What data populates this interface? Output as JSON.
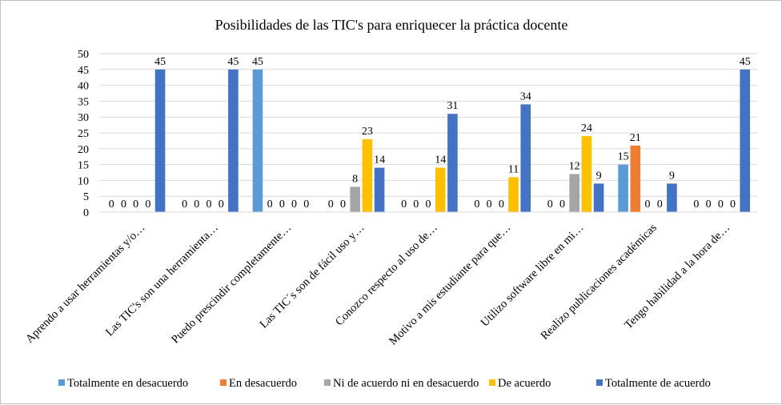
{
  "chart_data": {
    "type": "bar",
    "title": "Posibilidades de las TIC's para enriquecer la práctica docente",
    "categories": [
      "Aprendo a usar herramientas y/o…",
      "Las TIC's son una herramienta…",
      "Puedo prescindir completamente…",
      "Las TIC´s son de fácil uso y…",
      "Conozco respecto al uso de…",
      "Motivo a mis estudiante para que…",
      "Utilizo software libre en mi…",
      "Realizo publicaciones académicas",
      "Tengo habilidad a la hora de…"
    ],
    "series": [
      {
        "name": "Totalmente en desacuerdo",
        "color": "#5B9BD5",
        "values": [
          0,
          0,
          45,
          0,
          0,
          0,
          0,
          15,
          0
        ]
      },
      {
        "name": "En desacuerdo",
        "color": "#ED7D31",
        "values": [
          0,
          0,
          0,
          0,
          0,
          0,
          0,
          21,
          0
        ]
      },
      {
        "name": "Ni de acuerdo ni en desacuerdo",
        "color": "#A5A5A5",
        "values": [
          0,
          0,
          0,
          8,
          0,
          0,
          12,
          0,
          0
        ]
      },
      {
        "name": "De acuerdo",
        "color": "#FFC000",
        "values": [
          0,
          0,
          0,
          23,
          14,
          11,
          24,
          0,
          0
        ]
      },
      {
        "name": "Totalmente de acuerdo",
        "color": "#4472C4",
        "values": [
          45,
          45,
          0,
          14,
          31,
          34,
          9,
          9,
          45
        ]
      }
    ],
    "ylim": [
      0,
      50
    ],
    "yticks": [
      0,
      5,
      10,
      15,
      20,
      25,
      30,
      35,
      40,
      45,
      50
    ],
    "grid": true,
    "legend": "bottom",
    "data_labels": true
  }
}
